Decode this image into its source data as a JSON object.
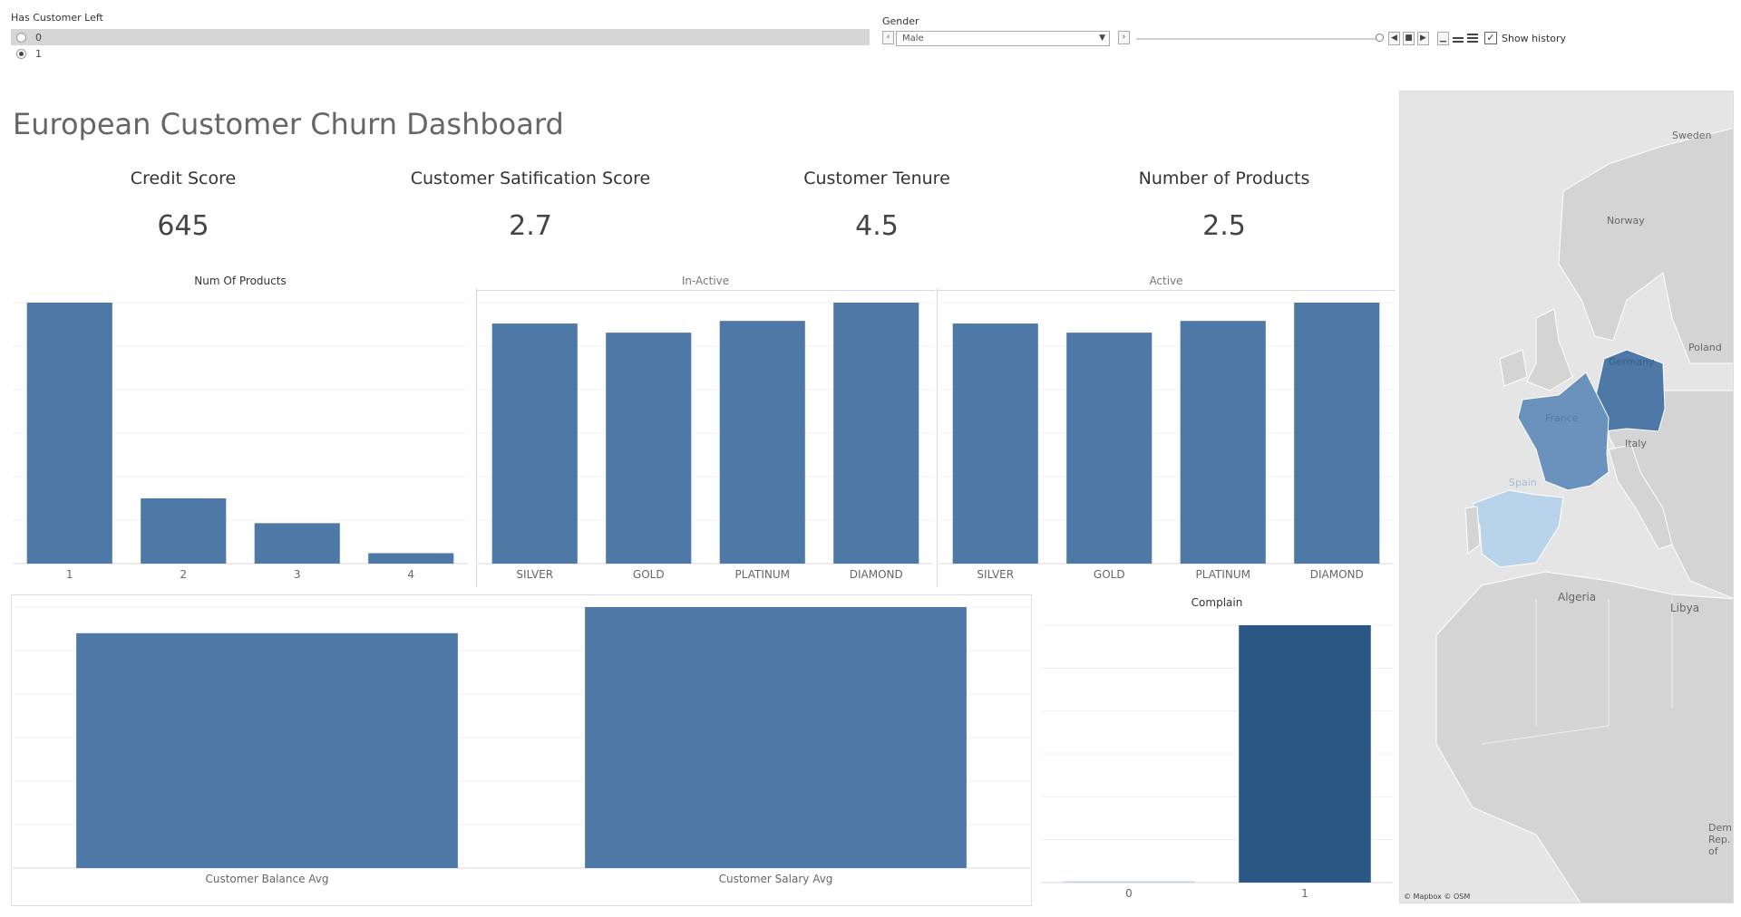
{
  "filters": {
    "has_customer_left": {
      "label": "Has Customer Left",
      "options": [
        {
          "label": "0",
          "selected": false
        },
        {
          "label": "1",
          "selected": true
        }
      ]
    },
    "gender": {
      "label": "Gender",
      "value": "Male",
      "show_history_label": "Show history",
      "show_history_checked": true
    }
  },
  "title": "European Customer Churn Dashboard",
  "kpis": [
    {
      "label": "Credit Score",
      "value": "645"
    },
    {
      "label": "Customer Satification Score",
      "value": "2.7"
    },
    {
      "label": "Customer Tenure",
      "value": "4.5"
    },
    {
      "label": "Number of Products",
      "value": "2.5"
    }
  ],
  "chart_data": [
    {
      "type": "bar",
      "title": "Num Of Products",
      "categories": [
        "1",
        "2",
        "3",
        "4"
      ],
      "values": [
        100,
        25,
        15.5,
        4
      ],
      "ylim": [
        0,
        100
      ],
      "color": "#4e79a7"
    },
    {
      "type": "bar",
      "title": "In-Active",
      "categories": [
        "SILVER",
        "GOLD",
        "PLATINUM",
        "DIAMOND"
      ],
      "values": [
        92,
        88.5,
        93,
        100
      ],
      "ylim": [
        0,
        100
      ],
      "color": "#4e79a7"
    },
    {
      "type": "bar",
      "title": "Active",
      "categories": [
        "SILVER",
        "GOLD",
        "PLATINUM",
        "DIAMOND"
      ],
      "values": [
        92,
        88.5,
        93,
        100
      ],
      "ylim": [
        0,
        100
      ],
      "color": "#4e79a7"
    },
    {
      "type": "bar",
      "title": "",
      "categories": [
        "Customer Balance Avg",
        "Customer Salary Avg"
      ],
      "values": [
        90,
        100
      ],
      "ylim": [
        0,
        100
      ],
      "color": "#4e79a7"
    },
    {
      "type": "bar",
      "title": "Complain",
      "categories": [
        "0",
        "1"
      ],
      "values": [
        0.5,
        100
      ],
      "ylim": [
        0,
        100
      ],
      "colors": [
        "#c4d3e6",
        "#2b5784"
      ]
    }
  ],
  "map": {
    "labels": [
      "Sweden",
      "Norway",
      "Poland",
      "Germany",
      "France",
      "Italy",
      "Spain",
      "Algeria",
      "Libya",
      "Dem. Rep. of"
    ],
    "attribution": "© Mapbox © OSM",
    "colors": {
      "germany": "#4e79a7",
      "france": "#6b91bd",
      "spain": "#b9d4ea",
      "land": "#d4d4d4",
      "sea": "#e5e5e5"
    }
  }
}
